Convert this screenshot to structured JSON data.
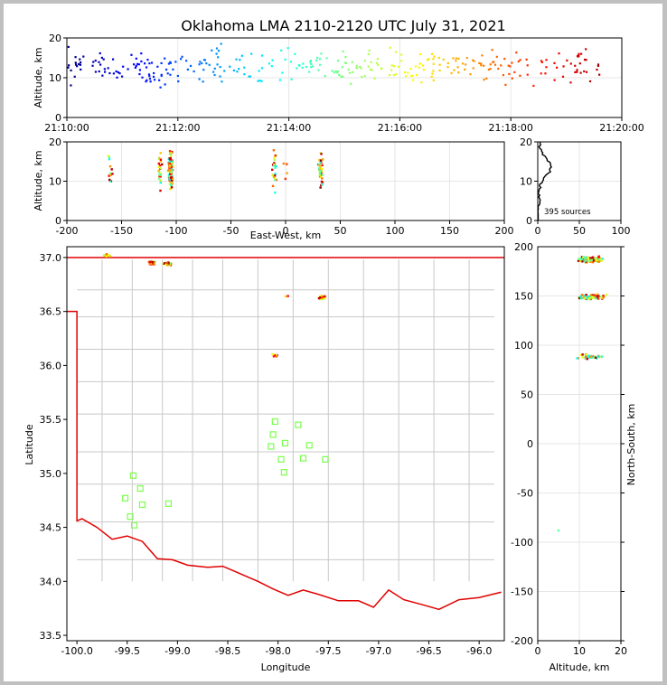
{
  "figure": {
    "title": "Oklahoma LMA 2110-2120 UTC July 31, 2021",
    "sources_label": "395 sources"
  },
  "chart_data": [
    {
      "panel": "altitude-time",
      "type": "scatter",
      "ylabel": "Altitude, km",
      "xlabel": "",
      "xlim_minutes": [
        0,
        10
      ],
      "ylim": [
        0,
        20
      ],
      "xticklabels": [
        "21:10:00",
        "21:12:00",
        "21:14:00",
        "21:16:00",
        "21:18:00",
        "21:20:00"
      ],
      "yticklabels": [
        "0",
        "10",
        "20"
      ],
      "colormap": "jet, by time",
      "grid": true
    },
    {
      "panel": "altitude-eastwest",
      "type": "scatter",
      "ylabel": "Altitude, km",
      "xlabel": "East-West, km",
      "xlim": [
        -200,
        200
      ],
      "ylim": [
        0,
        20
      ],
      "xticklabels": [
        "-200",
        "-150",
        "-100",
        "-50",
        "0",
        "50",
        "100",
        "150",
        "200"
      ],
      "yticklabels": [
        "0",
        "10",
        "20"
      ],
      "clusters_x_km": [
        -160,
        -115,
        -105,
        -10,
        0,
        32
      ],
      "grid": true
    },
    {
      "panel": "altitude-histogram",
      "type": "line",
      "xlim": [
        0,
        100
      ],
      "ylim": [
        0,
        20
      ],
      "xticklabels": [
        "0",
        "50",
        "100"
      ],
      "yticklabels": [
        "0",
        "10",
        "20"
      ],
      "annotation": "395 sources",
      "grid": true
    },
    {
      "panel": "plan-view-map",
      "type": "scatter",
      "xlabel": "Longitude",
      "ylabel": "Latitude",
      "xlim": [
        -100.1,
        -95.75
      ],
      "ylim": [
        33.45,
        37.1
      ],
      "xticklabels": [
        "-100.0",
        "-99.5",
        "-99.0",
        "-98.5",
        "-98.0",
        "-97.5",
        "-97.0",
        "-96.5",
        "-96.0"
      ],
      "yticklabels": [
        "33.5",
        "34.0",
        "34.5",
        "35.0",
        "35.5",
        "36.0",
        "36.5",
        "37.0"
      ],
      "stations": [
        {
          "lon": -99.52,
          "lat": 34.77
        },
        {
          "lon": -99.47,
          "lat": 34.6
        },
        {
          "lon": -99.43,
          "lat": 34.52
        },
        {
          "lon": -99.44,
          "lat": 34.98
        },
        {
          "lon": -99.37,
          "lat": 34.86
        },
        {
          "lon": -99.35,
          "lat": 34.71
        },
        {
          "lon": -99.09,
          "lat": 34.72
        },
        {
          "lon": -98.03,
          "lat": 35.48
        },
        {
          "lon": -98.05,
          "lat": 35.36
        },
        {
          "lon": -98.07,
          "lat": 35.25
        },
        {
          "lon": -97.97,
          "lat": 35.13
        },
        {
          "lon": -97.94,
          "lat": 35.01
        },
        {
          "lon": -97.93,
          "lat": 35.28
        },
        {
          "lon": -97.8,
          "lat": 35.45
        },
        {
          "lon": -97.75,
          "lat": 35.14
        },
        {
          "lon": -97.69,
          "lat": 35.26
        },
        {
          "lon": -97.53,
          "lat": 35.13
        }
      ],
      "source_clusters": [
        {
          "lon": -99.71,
          "lat": 37.02
        },
        {
          "lon": -99.26,
          "lat": 36.95
        },
        {
          "lon": -99.1,
          "lat": 36.94
        },
        {
          "lon": -98.03,
          "lat": 36.09
        },
        {
          "lon": -97.56,
          "lat": 36.63
        },
        {
          "lon": -97.92,
          "lat": 36.64
        }
      ]
    },
    {
      "panel": "northsouth-altitude",
      "type": "scatter",
      "xlabel": "Altitude, km",
      "ylabel": "North-South, km",
      "xlim": [
        0,
        20
      ],
      "ylim": [
        -200,
        200
      ],
      "xticklabels": [
        "0",
        "10",
        "20"
      ],
      "yticklabels": [
        "-200",
        "-150",
        "-100",
        "-50",
        "0",
        "50",
        "100",
        "150",
        "200"
      ],
      "clusters_ns_km": [
        187,
        149,
        88,
        -86
      ],
      "grid": true
    }
  ]
}
